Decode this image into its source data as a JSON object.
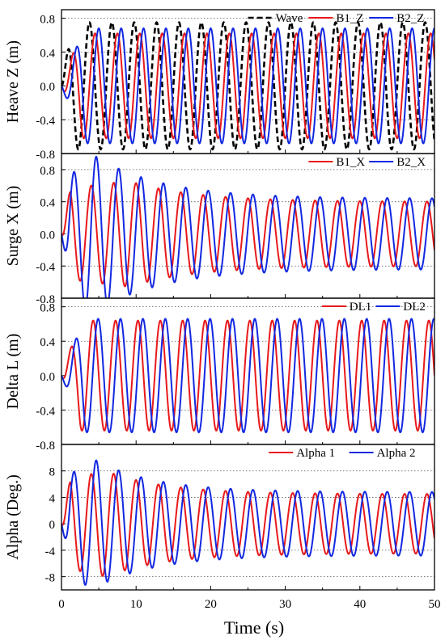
{
  "xlabel": "Time (s)",
  "colors": {
    "red": "#e8191b",
    "blue": "#1228e0",
    "black": "#000000"
  },
  "x_ticks": [
    "0",
    "10",
    "20",
    "30",
    "40",
    "50"
  ],
  "chart_data": [
    {
      "type": "line",
      "ylabel": "Heave Z (m)",
      "xlim": [
        0,
        50
      ],
      "ylim": [
        -0.8,
        0.9
      ],
      "y_ticks": [
        "0.8",
        "0.4",
        "0.0",
        "-0.4",
        "-0.8"
      ],
      "grid": "horizontal dotted",
      "legend": "top-right",
      "series": [
        {
          "name": "Wave",
          "color": "#000000",
          "dash": true,
          "waveform": {
            "amp": 0.75,
            "period": 3.0,
            "phase_deg": 0,
            "ramp_s": 1.5
          }
        },
        {
          "name": "B1_Z",
          "color": "#e8191b",
          "dash": false,
          "waveform": {
            "amp": 0.62,
            "period": 3.0,
            "phase_deg": -90,
            "ramp_s": 2.5
          }
        },
        {
          "name": "B2_Z",
          "color": "#1228e0",
          "dash": false,
          "waveform": {
            "amp": 0.68,
            "period": 3.0,
            "phase_deg": -150,
            "ramp_s": 3
          }
        }
      ]
    },
    {
      "type": "line",
      "ylabel": "Surge X (m)",
      "xlim": [
        0,
        50
      ],
      "ylim": [
        -0.8,
        1.0
      ],
      "y_ticks": [
        "0.8",
        "0.4",
        "0.0",
        "-0.4",
        "-0.8"
      ],
      "grid": "horizontal dotted",
      "legend": "top-right",
      "series": [
        {
          "name": "B1_X",
          "color": "#e8191b",
          "dash": false,
          "waveform": {
            "amp": 0.4,
            "period": 3.0,
            "phase_deg": -30,
            "peak": 0.66,
            "peak_t": 9,
            "decay": 9,
            "start": 0.6
          }
        },
        {
          "name": "B2_X",
          "color": "#1228e0",
          "dash": false,
          "waveform": {
            "amp": 0.44,
            "period": 3.0,
            "phase_deg": -110,
            "peak": 1.0,
            "peak_t": 4,
            "decay": 9,
            "start": 0.3
          }
        }
      ]
    },
    {
      "type": "line",
      "ylabel": "Delta L (m)",
      "xlim": [
        0,
        50
      ],
      "ylim": [
        -0.8,
        0.9
      ],
      "y_ticks": [
        "0.8",
        "0.4",
        "0.0",
        "-0.4",
        "-0.8"
      ],
      "grid": "horizontal dotted",
      "legend": "top-right",
      "series": [
        {
          "name": "DL1",
          "color": "#e8191b",
          "dash": false,
          "waveform": {
            "amp": 0.64,
            "period": 3.0,
            "phase_deg": -60,
            "ramp_s": 2.5
          }
        },
        {
          "name": "DL2",
          "color": "#1228e0",
          "dash": false,
          "waveform": {
            "amp": 0.66,
            "period": 3.0,
            "phase_deg": -140,
            "ramp_s": 3
          }
        }
      ]
    },
    {
      "type": "line",
      "ylabel": "Alpha (Deg.)",
      "xlim": [
        0,
        50
      ],
      "ylim": [
        -10,
        12
      ],
      "y_ticks": [
        "8",
        "4",
        "0",
        "-4",
        "-8"
      ],
      "grid": "horizontal dotted",
      "legend": "top-right",
      "series": [
        {
          "name": "Alpha 1",
          "color": "#e8191b",
          "dash": false,
          "waveform": {
            "amp": 4.5,
            "period": 3.0,
            "phase_deg": -30,
            "peak": 8.0,
            "peak_t": 6,
            "decay": 8,
            "start": 0.6
          }
        },
        {
          "name": "Alpha 2",
          "color": "#1228e0",
          "dash": false,
          "waveform": {
            "amp": 4.8,
            "period": 3.0,
            "phase_deg": -110,
            "peak": 10.0,
            "peak_t": 4,
            "decay": 8,
            "start": 0.3
          }
        }
      ]
    }
  ]
}
